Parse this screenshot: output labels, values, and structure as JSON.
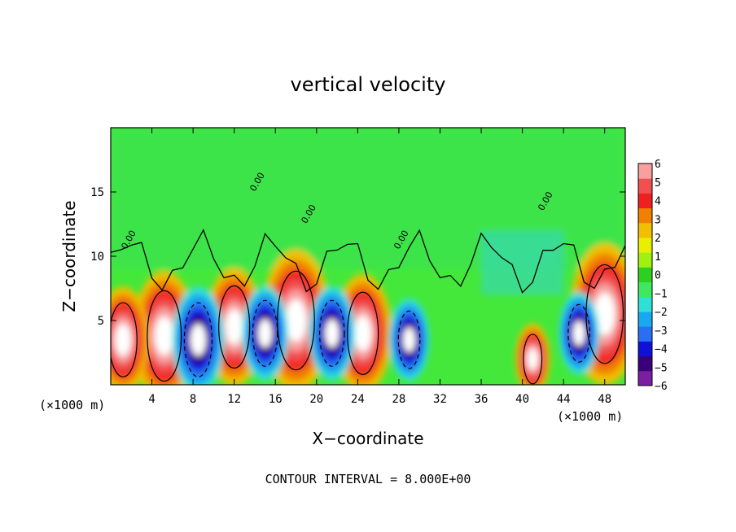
{
  "chart_data": {
    "type": "heatmap",
    "title": "vertical velocity",
    "xlabel": "X−coordinate",
    "ylabel": "Z−coordinate",
    "x_unit_left": "(×1000 m)",
    "x_unit_right": "(×1000 m)",
    "xlim": [
      0,
      50
    ],
    "ylim": [
      0,
      20
    ],
    "x_ticks": [
      4,
      8,
      12,
      16,
      20,
      24,
      28,
      32,
      36,
      40,
      44,
      48
    ],
    "y_ticks": [
      5,
      10,
      15
    ],
    "colorbar": {
      "levels": [
        "6",
        "5",
        "4",
        "3",
        "2",
        "1",
        "0",
        "−1",
        "−2",
        "−3",
        "−4",
        "−5",
        "−6"
      ],
      "colors": [
        "#7a1fa2",
        "#3a007a",
        "#1010d8",
        "#2a6ef2",
        "#18a8f0",
        "#30e0d8",
        "#40e860",
        "#2ed020",
        "#a0f010",
        "#e8f000",
        "#f0c000",
        "#f08000",
        "#f02020",
        "#f05050",
        "#f8a0a0"
      ]
    },
    "contour_label": "0.00",
    "features": [
      {
        "kind": "updraft",
        "x": 5.2,
        "z": 3.8,
        "w": 5.5
      },
      {
        "kind": "updraft",
        "x": 1.2,
        "z": 3.5,
        "w": 4.5
      },
      {
        "kind": "updraft",
        "x": 12.0,
        "z": 4.5,
        "w": 5.0
      },
      {
        "kind": "updraft",
        "x": 18.0,
        "z": 5.0,
        "w": 6.0
      },
      {
        "kind": "updraft",
        "x": 24.5,
        "z": 4.0,
        "w": 5.0
      },
      {
        "kind": "updraft",
        "x": 48.0,
        "z": 5.5,
        "w": 6.0
      },
      {
        "kind": "updraft",
        "x": 41.0,
        "z": 2.0,
        "w": 3.0
      },
      {
        "kind": "downdraft",
        "x": 8.5,
        "z": 3.5,
        "w": -4.5
      },
      {
        "kind": "downdraft",
        "x": 15.0,
        "z": 4.0,
        "w": -4.0
      },
      {
        "kind": "downdraft",
        "x": 21.5,
        "z": 4.0,
        "w": -4.0
      },
      {
        "kind": "downdraft",
        "x": 29.0,
        "z": 3.5,
        "w": -3.5
      },
      {
        "kind": "downdraft",
        "x": 45.5,
        "z": 4.0,
        "w": -3.5
      }
    ],
    "footnote": "CONTOUR INTERVAL = 8.000E+00"
  }
}
